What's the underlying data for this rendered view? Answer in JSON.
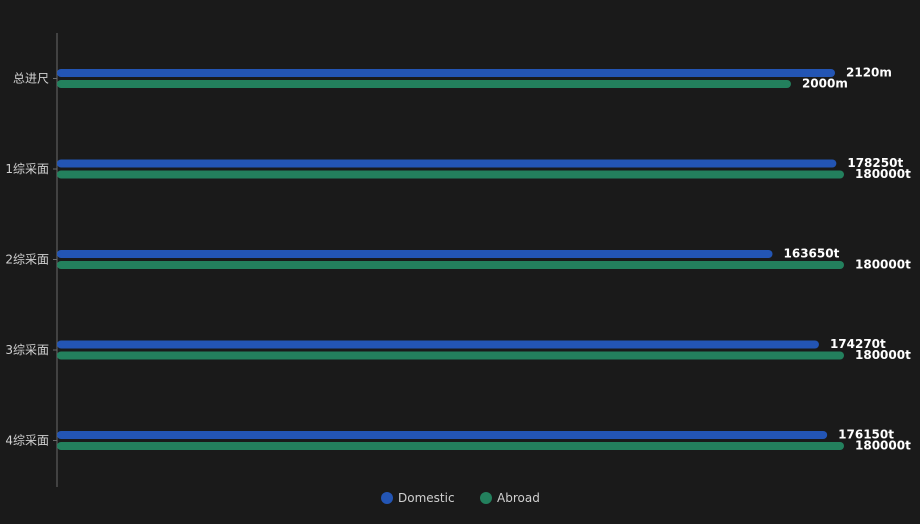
{
  "chart_data": {
    "type": "bar",
    "orientation": "horizontal",
    "categories": [
      "总进尺",
      "1综采面",
      "2综采面",
      "3综采面",
      "4综采面"
    ],
    "series": [
      {
        "name": "Domestic",
        "color": "#2355b4",
        "values": [
          2120,
          178250,
          163650,
          174270,
          176150
        ],
        "labels": [
          "2120m",
          "178250t",
          "163650t",
          "174270t",
          "176150t"
        ]
      },
      {
        "name": "Abroad",
        "color": "#23805d",
        "values": [
          2000,
          180000,
          180000,
          180000,
          180000
        ],
        "labels": [
          "2000m",
          "180000t",
          "180000t",
          "180000t",
          "180000t"
        ]
      }
    ],
    "grid": false,
    "legend_position": "bottom-center"
  }
}
